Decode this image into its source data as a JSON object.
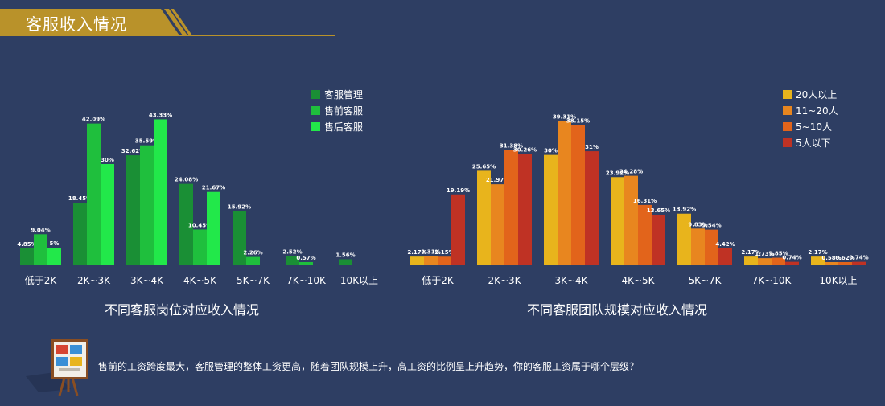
{
  "header": {
    "title": "客服收入情况"
  },
  "colors": {
    "background": "#2e3e63",
    "banner_gold": "#b9922a",
    "left_series": [
      "#1a8f35",
      "#1fbf3d",
      "#22e84a"
    ],
    "right_series": [
      "#e8b41c",
      "#e8861f",
      "#e2641b",
      "#bf3224"
    ]
  },
  "chart_data": [
    {
      "type": "bar",
      "title": "不同客服岗位对应收入情况",
      "categories": [
        "低于2K",
        "2K~3K",
        "3K~4K",
        "4K~5K",
        "5K~7K",
        "7K~10K",
        "10K以上"
      ],
      "series": [
        {
          "name": "客服管理",
          "values": [
            4.85,
            18.45,
            32.62,
            24.08,
            15.92,
            2.52,
            1.56
          ],
          "labels": [
            "4.85%",
            "18.45%",
            "32.62%",
            "24.08%",
            "15.92%",
            "2.52%",
            "1.56%"
          ]
        },
        {
          "name": "售前客服",
          "values": [
            9.04,
            42.09,
            35.59,
            10.45,
            2.26,
            0.57,
            0
          ],
          "labels": [
            "9.04%",
            "42.09%",
            "35.59%",
            "10.45%",
            "2.26%",
            "0.57%",
            ""
          ]
        },
        {
          "name": "售后客服",
          "values": [
            5,
            30,
            43.33,
            21.67,
            0,
            0,
            0
          ],
          "labels": [
            "5%",
            "30%",
            "43.33%",
            "21.67%",
            "",
            "",
            ""
          ]
        }
      ],
      "ylim": [
        0,
        48
      ],
      "legend": "top-right"
    },
    {
      "type": "bar",
      "title": "不同客服团队规模对应收入情况",
      "categories": [
        "低于2K",
        "2K~3K",
        "3K~4K",
        "4K~5K",
        "5K~7K",
        "7K~10K",
        "10K以上"
      ],
      "series": [
        {
          "name": "20人以上",
          "values": [
            2.17,
            25.65,
            30,
            23.92,
            13.92,
            2.17,
            2.17
          ],
          "labels": [
            "2.17%",
            "25.65%",
            "30%",
            "23.92%",
            "13.92%",
            "2.17%",
            "2.17%"
          ]
        },
        {
          "name": "11~20人",
          "values": [
            2.31,
            21.97,
            39.31,
            24.28,
            9.83,
            1.73,
            0.58
          ],
          "labels": [
            "2.31%",
            "21.97%",
            "39.31%",
            "24.28%",
            "9.83%",
            "1.73%",
            "0.58%"
          ]
        },
        {
          "name": "5~10人",
          "values": [
            2.15,
            31.38,
            38.15,
            16.31,
            9.54,
            1.85,
            0.62
          ],
          "labels": [
            "2.15%",
            "31.38%",
            "38.15%",
            "16.31%",
            "9.54%",
            "1.85%",
            "0.62%"
          ]
        },
        {
          "name": "5人以下",
          "values": [
            19.19,
            30.26,
            31,
            13.65,
            4.42,
            0.74,
            0.74
          ],
          "labels": [
            "19.19%",
            "30.26%",
            "31%",
            "13.65%",
            "4.42%",
            "0.74%",
            "0.74%"
          ]
        }
      ],
      "ylim": [
        0,
        44
      ],
      "legend": "top-right"
    }
  ],
  "footnote": {
    "text": "售前的工资跨度最大，客服管理的整体工资更高，随着团队规模上升，高工资的比例呈上升趋势，你的客服工资属于哪个层级？"
  }
}
